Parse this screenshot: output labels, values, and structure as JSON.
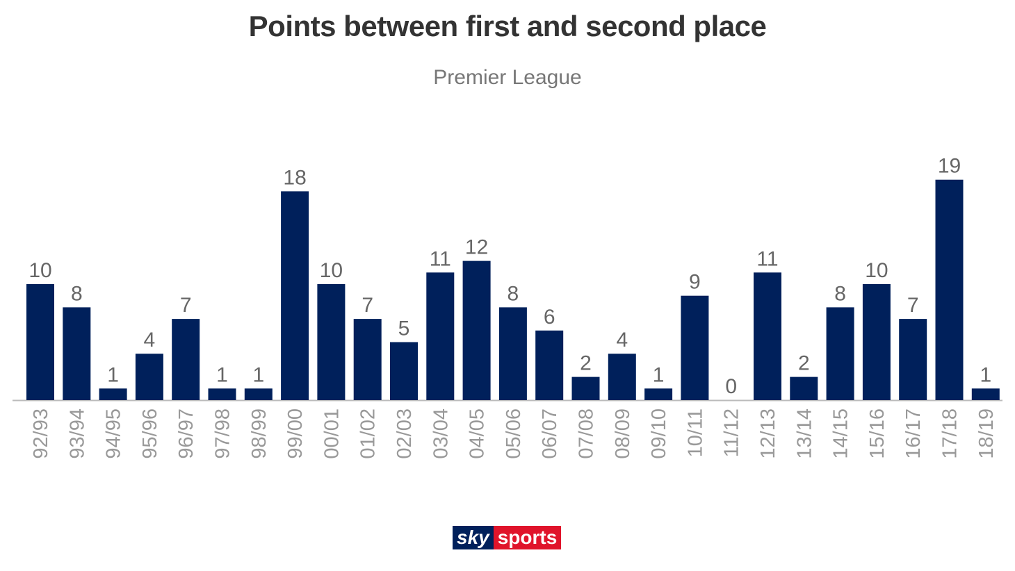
{
  "chart_data": {
    "type": "bar",
    "title": "Points between first and second place",
    "subtitle": "Premier League",
    "categories": [
      "92/93",
      "93/94",
      "94/95",
      "95/96",
      "96/97",
      "97/98",
      "98/99",
      "99/00",
      "00/01",
      "01/02",
      "02/03",
      "03/04",
      "04/05",
      "05/06",
      "06/07",
      "07/08",
      "08/09",
      "09/10",
      "10/11",
      "11/12",
      "12/13",
      "13/14",
      "14/15",
      "15/16",
      "16/17",
      "17/18",
      "18/19"
    ],
    "values": [
      10,
      8,
      1,
      4,
      7,
      1,
      1,
      18,
      10,
      7,
      5,
      11,
      12,
      8,
      6,
      2,
      4,
      1,
      9,
      0,
      11,
      2,
      8,
      10,
      7,
      19,
      1
    ],
    "ylim": [
      0,
      20
    ],
    "xlabel": "",
    "ylabel": "",
    "grid": false,
    "bar_color": "#00205b",
    "label_color": "#666666",
    "tick_label_color": "#999999"
  },
  "logo": {
    "sky": "sky",
    "sports": "sports"
  }
}
